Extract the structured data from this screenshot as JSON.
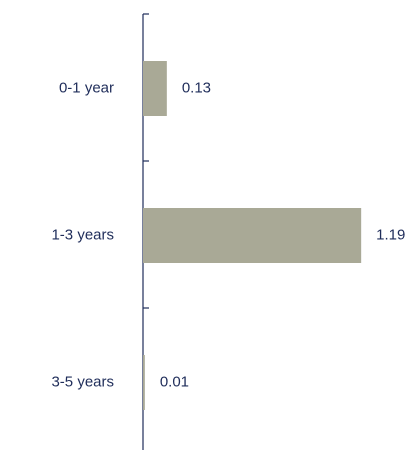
{
  "chart_data": {
    "type": "bar",
    "orientation": "horizontal",
    "categories": [
      "0-1 year",
      "1-3 years",
      "3-5 years"
    ],
    "values": [
      0.13,
      1.19,
      0.01
    ],
    "value_labels": [
      "0.13",
      "1.19",
      "0.01"
    ],
    "title": "",
    "xlabel": "",
    "ylabel": "",
    "xlim": [
      0,
      1.2
    ],
    "grid": false,
    "legend": "none"
  },
  "colors": {
    "bar": "#a9a996",
    "axis": "#1f2d5a",
    "text": "#1f2d5a"
  }
}
